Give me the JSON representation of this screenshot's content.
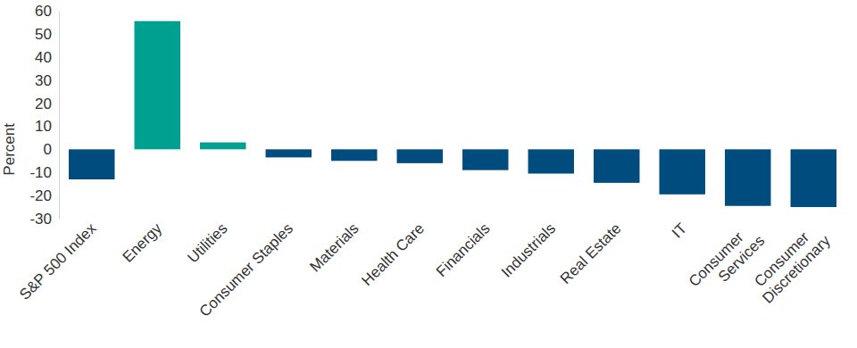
{
  "chart_data": {
    "type": "bar",
    "y_label": "Percent",
    "categories": [
      "S&P 500 Index",
      "Energy",
      "Utilities",
      "Consumer Staples",
      "Materials",
      "Health Care",
      "Financials",
      "Industrials",
      "Real Estate",
      "IT",
      "Consumer Services",
      "Consumer Discretionary"
    ],
    "values": [
      -13,
      55.5,
      3,
      -3.5,
      -5,
      -6,
      -9,
      -10.5,
      -14.5,
      -19.5,
      -24.5,
      -25
    ],
    "colors": [
      "#004c7f",
      "#00a091",
      "#00a091",
      "#004c7f",
      "#004c7f",
      "#004c7f",
      "#004c7f",
      "#004c7f",
      "#004c7f",
      "#004c7f",
      "#004c7f",
      "#004c7f"
    ],
    "ylim": [
      -30,
      60
    ],
    "yticks": [
      -30,
      -20,
      -10,
      0,
      10,
      20,
      30,
      40,
      50,
      60
    ],
    "grid": false
  }
}
